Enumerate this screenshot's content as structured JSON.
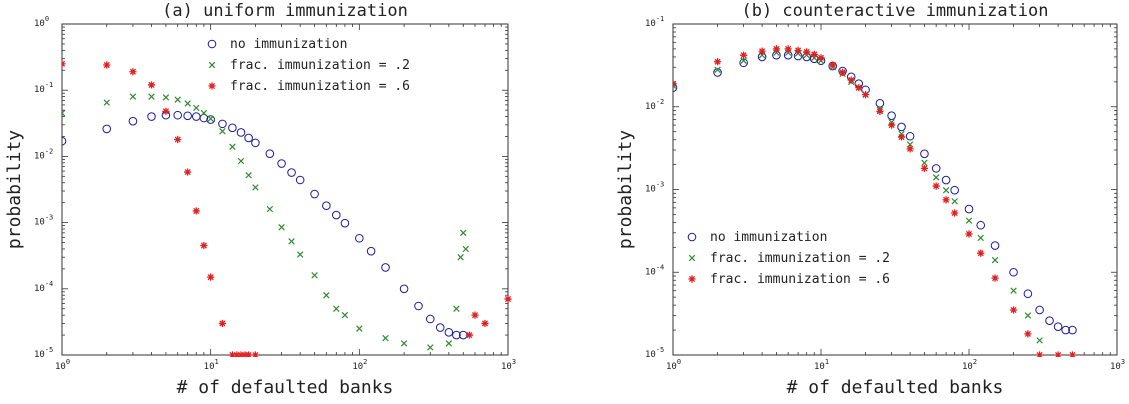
{
  "chart_data": [
    {
      "type": "scatter",
      "title": "(a) uniform immunization",
      "xlabel": "# of defaulted banks",
      "ylabel": "probability",
      "xscale": "log",
      "yscale": "log",
      "xlim": [
        1,
        1000
      ],
      "ylim": [
        1e-05,
        1
      ],
      "x_ticks": [
        {
          "base": "10",
          "exp": "0"
        },
        {
          "base": "10",
          "exp": "1"
        },
        {
          "base": "10",
          "exp": "2"
        },
        {
          "base": "10",
          "exp": "3"
        }
      ],
      "y_ticks": [
        {
          "base": "10",
          "exp": "0"
        },
        {
          "base": "10",
          "exp": "-1"
        },
        {
          "base": "10",
          "exp": "-2"
        },
        {
          "base": "10",
          "exp": "-3"
        },
        {
          "base": "10",
          "exp": "-4"
        },
        {
          "base": "10",
          "exp": "-5"
        }
      ],
      "legend_position": "top-center",
      "series": [
        {
          "name": "no immunization",
          "marker": "circle",
          "color": "#1a1a9c",
          "x": [
            1,
            2,
            3,
            4,
            5,
            6,
            7,
            8,
            9,
            10,
            12,
            14,
            16,
            18,
            20,
            25,
            30,
            35,
            40,
            50,
            60,
            70,
            80,
            100,
            120,
            150,
            200,
            250,
            300,
            350,
            400,
            450,
            500
          ],
          "y": [
            0.017,
            0.026,
            0.034,
            0.04,
            0.042,
            0.042,
            0.041,
            0.04,
            0.038,
            0.036,
            0.031,
            0.027,
            0.023,
            0.019,
            0.016,
            0.011,
            0.0078,
            0.0057,
            0.0044,
            0.0027,
            0.0018,
            0.0013,
            0.00098,
            0.00058,
            0.00037,
            0.00021,
            0.0001,
            5.5e-05,
            3.5e-05,
            2.6e-05,
            2.2e-05,
            2e-05,
            2e-05
          ]
        },
        {
          "name": "frac. immunization = .2",
          "marker": "x",
          "color": "#2e8b2e",
          "x": [
            1,
            2,
            3,
            4,
            5,
            6,
            7,
            8,
            9,
            10,
            12,
            14,
            16,
            18,
            20,
            25,
            30,
            35,
            40,
            50,
            60,
            70,
            80,
            100,
            150,
            200,
            300,
            400,
            450,
            480,
            500,
            520
          ],
          "y": [
            0.045,
            0.065,
            0.08,
            0.08,
            0.078,
            0.072,
            0.063,
            0.054,
            0.045,
            0.037,
            0.024,
            0.014,
            0.0085,
            0.0052,
            0.0034,
            0.0016,
            0.00085,
            0.00052,
            0.00033,
            0.00016,
            8e-05,
            5e-05,
            4e-05,
            2.5e-05,
            1.8e-05,
            1.5e-05,
            1.3e-05,
            1.5e-05,
            5e-05,
            0.0003,
            0.0007,
            0.0004
          ]
        },
        {
          "name": "frac. immunization = .6",
          "marker": "star",
          "color": "#e02020",
          "x": [
            1,
            2,
            3,
            4,
            5,
            6,
            7,
            8,
            9,
            10,
            12,
            14,
            15,
            16,
            17,
            18,
            20,
            550,
            600,
            700,
            1000
          ],
          "y": [
            0.25,
            0.24,
            0.19,
            0.12,
            0.048,
            0.018,
            0.0058,
            0.0015,
            0.00045,
            0.00015,
            3e-05,
            1e-05,
            1e-05,
            1e-05,
            1e-05,
            1e-05,
            1e-05,
            2e-05,
            4e-05,
            3e-05,
            7e-05
          ]
        }
      ]
    },
    {
      "type": "scatter",
      "title": "(b) counteractive immunization",
      "xlabel": "# of defaulted banks",
      "ylabel": "probability",
      "xscale": "log",
      "yscale": "log",
      "xlim": [
        1,
        1000
      ],
      "ylim": [
        1e-05,
        0.1
      ],
      "x_ticks": [
        {
          "base": "10",
          "exp": "0"
        },
        {
          "base": "10",
          "exp": "1"
        },
        {
          "base": "10",
          "exp": "2"
        },
        {
          "base": "10",
          "exp": "3"
        }
      ],
      "y_ticks": [
        {
          "base": "10",
          "exp": "-1"
        },
        {
          "base": "10",
          "exp": "-2"
        },
        {
          "base": "10",
          "exp": "-3"
        },
        {
          "base": "10",
          "exp": "-4"
        },
        {
          "base": "10",
          "exp": "-5"
        }
      ],
      "legend_position": "bottom-left",
      "series": [
        {
          "name": "no immunization",
          "marker": "circle",
          "color": "#1a1a9c",
          "x": [
            1,
            2,
            3,
            4,
            5,
            6,
            7,
            8,
            9,
            10,
            12,
            14,
            16,
            18,
            20,
            25,
            30,
            35,
            40,
            50,
            60,
            70,
            80,
            100,
            120,
            150,
            200,
            250,
            300,
            350,
            400,
            450,
            500
          ],
          "y": [
            0.017,
            0.026,
            0.034,
            0.04,
            0.042,
            0.042,
            0.041,
            0.04,
            0.038,
            0.036,
            0.031,
            0.027,
            0.023,
            0.019,
            0.016,
            0.011,
            0.0078,
            0.0057,
            0.0044,
            0.0027,
            0.0018,
            0.0013,
            0.00098,
            0.00058,
            0.00037,
            0.00021,
            0.0001,
            5.5e-05,
            3.5e-05,
            2.6e-05,
            2.2e-05,
            2e-05,
            2e-05
          ]
        },
        {
          "name": "frac. immunization = .2",
          "marker": "x",
          "color": "#2e8b2e",
          "x": [
            1,
            2,
            3,
            4,
            5,
            6,
            7,
            8,
            9,
            10,
            12,
            14,
            16,
            18,
            20,
            25,
            30,
            35,
            40,
            50,
            60,
            70,
            80,
            100,
            120,
            150,
            200,
            250,
            300
          ],
          "y": [
            0.018,
            0.028,
            0.036,
            0.042,
            0.045,
            0.045,
            0.044,
            0.042,
            0.039,
            0.036,
            0.03,
            0.025,
            0.02,
            0.017,
            0.014,
            0.0092,
            0.0065,
            0.0047,
            0.0035,
            0.0021,
            0.0014,
            0.00098,
            0.00072,
            0.00042,
            0.00026,
            0.00014,
            6e-05,
            3e-05,
            1.5e-05
          ]
        },
        {
          "name": "frac. immunization = .6",
          "marker": "star",
          "color": "#e02020",
          "x": [
            1,
            2,
            3,
            4,
            5,
            6,
            7,
            8,
            9,
            10,
            12,
            14,
            16,
            18,
            20,
            25,
            30,
            35,
            40,
            50,
            60,
            70,
            80,
            100,
            120,
            150,
            200,
            250,
            300,
            400,
            500
          ],
          "y": [
            0.019,
            0.035,
            0.042,
            0.047,
            0.05,
            0.05,
            0.048,
            0.046,
            0.043,
            0.039,
            0.032,
            0.026,
            0.021,
            0.017,
            0.014,
            0.0088,
            0.006,
            0.0043,
            0.0031,
            0.0018,
            0.0011,
            0.00075,
            0.00052,
            0.00029,
            0.00017,
            8.5e-05,
            3.5e-05,
            1.8e-05,
            1e-05,
            1e-05,
            1e-05
          ]
        }
      ]
    }
  ]
}
